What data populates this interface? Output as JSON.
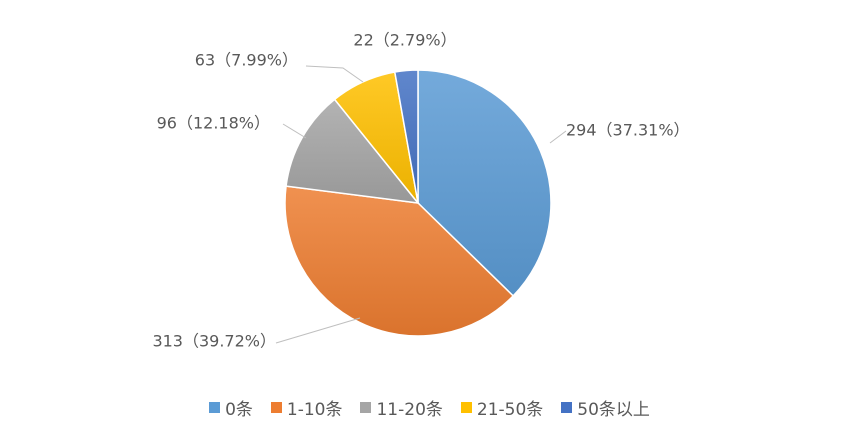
{
  "chart_data": {
    "type": "pie",
    "categories": [
      "0条",
      "1-10条",
      "11-20条",
      "21-50条",
      "50条以上"
    ],
    "values": [
      294,
      313,
      96,
      63,
      22
    ],
    "percentages": [
      "37.31%",
      "39.72%",
      "12.18%",
      "7.99%",
      "2.79%"
    ],
    "data_labels": [
      "294（37.31%）",
      "313（39.72%）",
      "96（12.18%）",
      "63（7.99%）",
      "22（2.79%）"
    ],
    "colors": [
      "#5B9BD5",
      "#ED7D31",
      "#A5A5A5",
      "#FFC000",
      "#4472C4"
    ],
    "legend": "bottom",
    "title": ""
  }
}
